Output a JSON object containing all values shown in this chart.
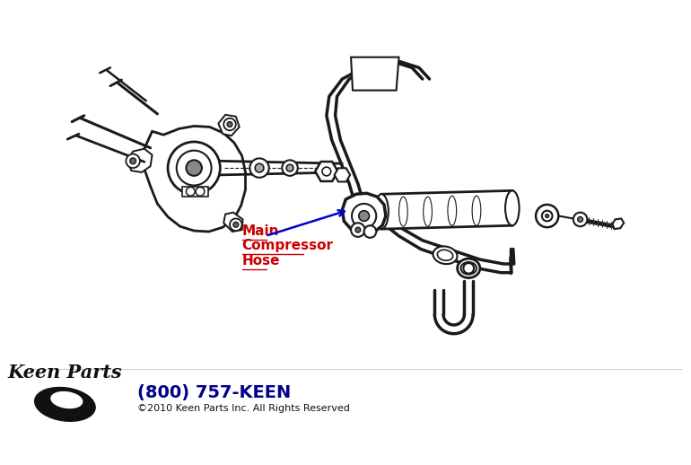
{
  "bg_color": "#ffffff",
  "line_color": "#1a1a1a",
  "label_color": "#cc0000",
  "arrow_color": "#0000cc",
  "phone_color": "#00008b",
  "label_lines": [
    "Main",
    "Compressor",
    "Hose"
  ],
  "phone_text": "(800) 757-KEEN",
  "copyright_text": "©2010 Keen Parts Inc. All Rights Reserved"
}
